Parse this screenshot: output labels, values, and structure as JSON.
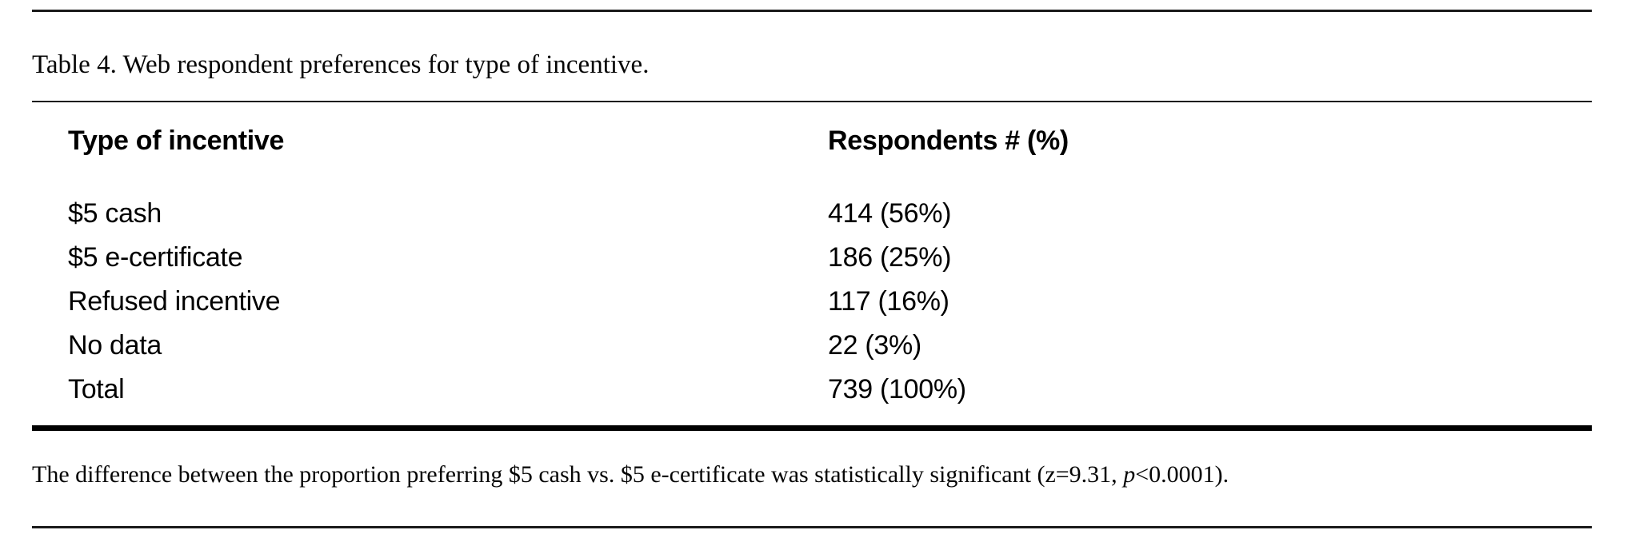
{
  "table": {
    "caption": "Table 4. Web respondent preferences for type of incentive.",
    "columns": [
      "Type of incentive",
      "Respondents # (%)"
    ],
    "rows": [
      {
        "label": "$5 cash",
        "value": "414 (56%)"
      },
      {
        "label": "$5 e-certificate",
        "value": "186 (25%)"
      },
      {
        "label": "Refused incentive",
        "value": "117 (16%)"
      },
      {
        "label": "No data",
        "value": "22 (3%)"
      },
      {
        "label": "Total",
        "value": "739 (100%)"
      }
    ]
  },
  "footnote": {
    "before_italic": "The difference between the proportion preferring $5 cash vs. $5 e-certificate was statistically significant (z=9.31, ",
    "italic": "p",
    "after_italic": "<0.0001)."
  },
  "colors": {
    "background": "#ffffff",
    "text": "#000000",
    "rule": "#1a1a1a"
  }
}
